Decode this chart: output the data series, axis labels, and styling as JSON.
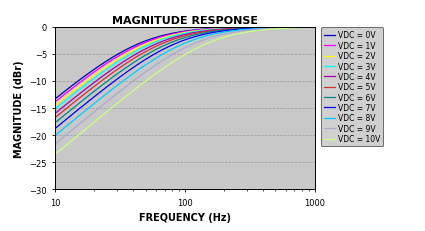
{
  "title": "MAGNITUDE RESPONSE",
  "xlabel": "FREQUENCY (Hz)",
  "ylabel": "MAGNITUDE (dBr)",
  "xlim": [
    10,
    1000
  ],
  "ylim": [
    -30,
    0
  ],
  "yticks": [
    0,
    -5,
    -10,
    -15,
    -20,
    -25,
    -30
  ],
  "xticks": [
    10,
    100,
    1000
  ],
  "background_color": "#c8c8c8",
  "fig_facecolor": "#ffffff",
  "series": [
    {
      "label": "VDC = 0V",
      "color": "#0000CD",
      "fc": 45.0
    },
    {
      "label": "VDC = 1V",
      "color": "#FF00FF",
      "fc": 48.0
    },
    {
      "label": "VDC = 2V",
      "color": "#FFFF00",
      "fc": 52.0
    },
    {
      "label": "VDC = 3V",
      "color": "#00FFFF",
      "fc": 56.0
    },
    {
      "label": "VDC = 4V",
      "color": "#AA00AA",
      "fc": 62.0
    },
    {
      "label": "VDC = 5V",
      "color": "#CC3333",
      "fc": 68.0
    },
    {
      "label": "VDC = 6V",
      "color": "#008888",
      "fc": 76.0
    },
    {
      "label": "VDC = 7V",
      "color": "#0000FF",
      "fc": 86.0
    },
    {
      "label": "VDC = 8V",
      "color": "#00CCFF",
      "fc": 100.0
    },
    {
      "label": "VDC = 9V",
      "color": "#AAAACC",
      "fc": 120.0
    },
    {
      "label": "VDC = 10V",
      "color": "#CCFF88",
      "fc": 150.0
    }
  ],
  "title_fontsize": 8,
  "label_fontsize": 7,
  "tick_fontsize": 6,
  "legend_fontsize": 5.5,
  "linewidth": 0.9
}
